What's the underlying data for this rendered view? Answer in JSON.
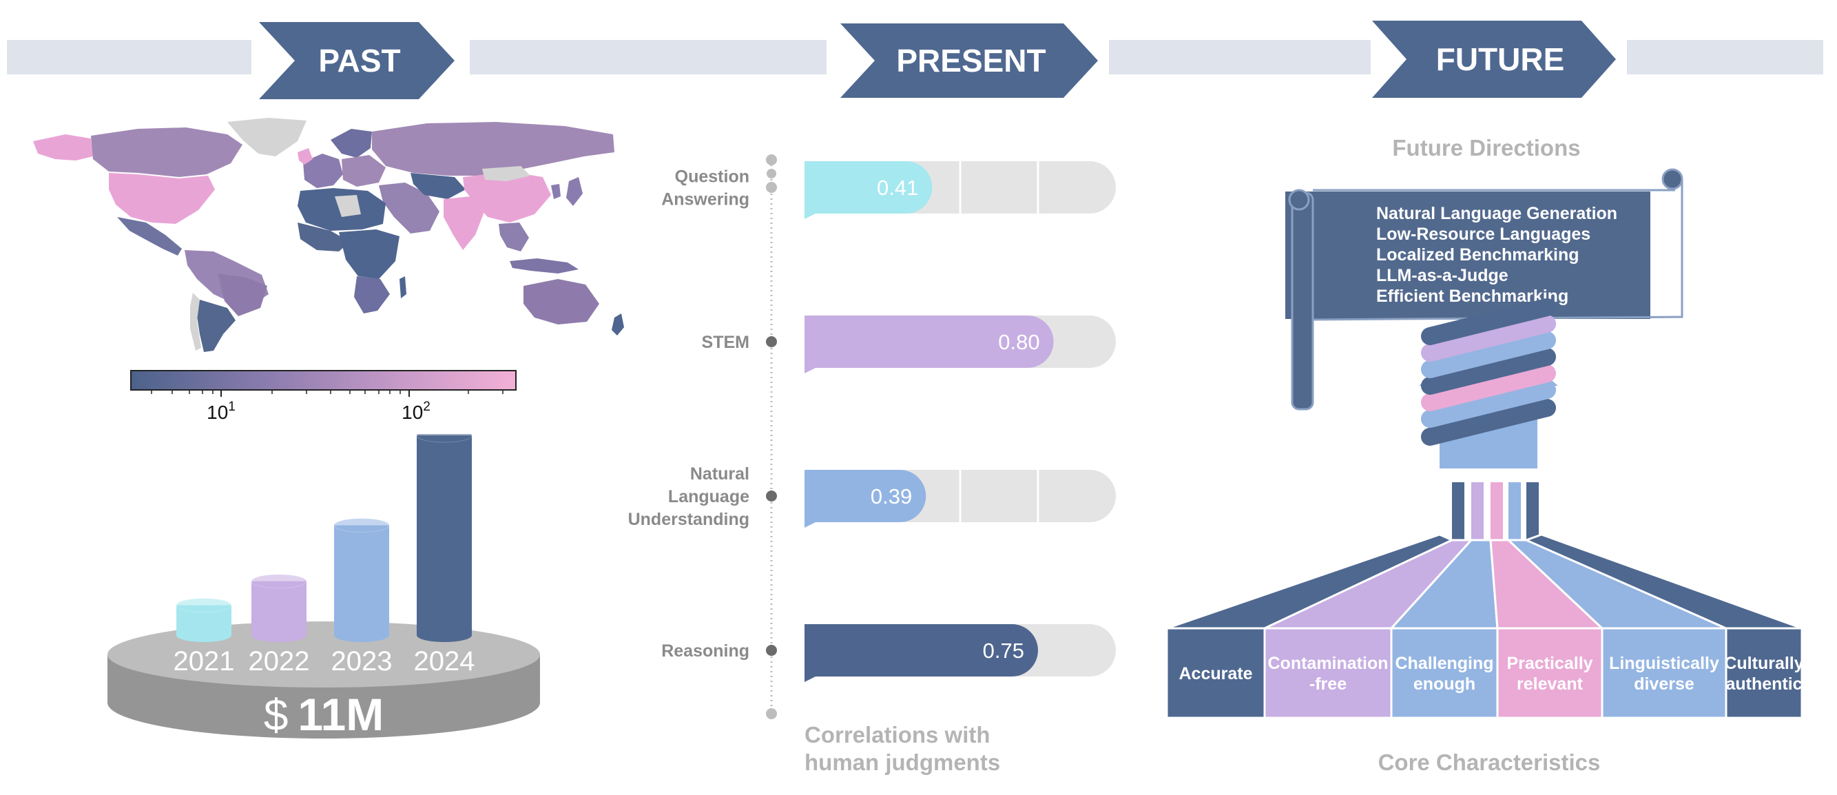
{
  "timeline": {
    "past": "PAST",
    "present": "PRESENT",
    "future": "FUTURE"
  },
  "past": {
    "colorbar": {
      "ticks": [
        {
          "base": "10",
          "exp": "1"
        },
        {
          "base": "10",
          "exp": "2"
        }
      ],
      "colors": [
        "#4c628a",
        "#8a7cae",
        "#c79ac8",
        "#f3b0d6"
      ]
    },
    "funding": {
      "years": [
        "2021",
        "2022",
        "2023",
        "2024"
      ],
      "relative_heights": [
        0.15,
        0.27,
        0.55,
        1.0
      ],
      "colors": [
        "#a5e6ee",
        "#c7aee3",
        "#94b5e2",
        "#4f6890"
      ],
      "currency": "$",
      "amount": "11M"
    }
  },
  "present": {
    "title_line1": "Correlations with",
    "title_line2": "human judgments",
    "chart_data": {
      "type": "bar",
      "orientation": "horizontal",
      "categories": [
        [
          "Question",
          "Answering"
        ],
        [
          "STEM"
        ],
        [
          "Natural",
          "Language",
          "Understanding"
        ],
        [
          "Reasoning"
        ]
      ],
      "values": [
        0.41,
        0.8,
        0.39,
        0.75
      ],
      "value_labels": [
        "0.41",
        "0.80",
        "0.39",
        "0.75"
      ],
      "colors": [
        "#a5e8ef",
        "#c6aee2",
        "#92b4e3",
        "#4e668f"
      ],
      "xlim": [
        0,
        1
      ]
    }
  },
  "future": {
    "title": "Future Directions",
    "directions": [
      "Natural Language Generation",
      "Low-Resource Languages",
      "Localized Benchmarking",
      "LLM-as-a-Judge",
      "Efficient Benchmarking"
    ],
    "core_title": "Core Characteristics",
    "core": [
      {
        "lines": [
          "Accurate"
        ],
        "color": "#4f6890"
      },
      {
        "lines": [
          "Contamination",
          "-free"
        ],
        "color": "#c7aee3"
      },
      {
        "lines": [
          "Challenging",
          "enough"
        ],
        "color": "#94b5e2"
      },
      {
        "lines": [
          "Practically",
          "relevant"
        ],
        "color": "#eaaad5"
      },
      {
        "lines": [
          "Linguistically",
          "diverse"
        ],
        "color": "#94b5e2"
      },
      {
        "lines": [
          "Culturally",
          "authentic"
        ],
        "color": "#4f6890"
      }
    ]
  }
}
